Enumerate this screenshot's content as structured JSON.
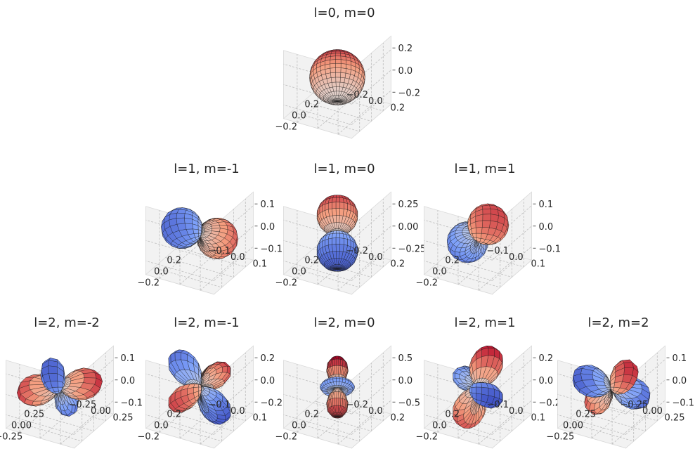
{
  "chart_data": [
    {
      "type": "surface3d",
      "title": "l=0, m=0",
      "l": 0,
      "m": 0,
      "x_ticks": [
        "−0.2",
        "0.0",
        "0.2"
      ],
      "y_ticks": [
        "0.2",
        "0.0",
        "−0.2"
      ],
      "z_ticks": [
        "0.2",
        "0.0",
        "−0.2"
      ]
    },
    {
      "type": "surface3d",
      "title": "l=1, m=-1",
      "l": 1,
      "m": -1,
      "x_ticks": [
        "−0.2",
        "0.0",
        "0.2"
      ],
      "y_ticks": [
        "0.1",
        "0.0",
        "−0.1"
      ],
      "z_ticks": [
        "0.1",
        "0.0",
        "−0.1"
      ]
    },
    {
      "type": "surface3d",
      "title": "l=1, m=0",
      "l": 1,
      "m": 0,
      "x_ticks": [
        "−0.2",
        "0.0",
        "0.2"
      ],
      "y_ticks": [
        "0.2",
        "0.0",
        "−0.2"
      ],
      "z_ticks": [
        "0.25",
        "0.00",
        "−0.25"
      ]
    },
    {
      "type": "surface3d",
      "title": "l=1, m=1",
      "l": 1,
      "m": 1,
      "x_ticks": [
        "−0.2",
        "0.0",
        "0.2"
      ],
      "y_ticks": [
        "0.1",
        "0.0",
        "−0.1"
      ],
      "z_ticks": [
        "0.1",
        "0.0",
        "−0.1"
      ]
    },
    {
      "type": "surface3d",
      "title": "l=2, m=-2",
      "l": 2,
      "m": -2,
      "x_ticks": [
        "−0.25",
        "0.00",
        "0.25"
      ],
      "y_ticks": [
        "0.25",
        "0.00",
        "−0.25"
      ],
      "z_ticks": [
        "0.1",
        "0.0",
        "−0.1"
      ]
    },
    {
      "type": "surface3d",
      "title": "l=2, m=-1",
      "l": 2,
      "m": -1,
      "x_ticks": [
        "−0.2",
        "0.0",
        "0.2"
      ],
      "y_ticks": [
        "0.1",
        "0.0",
        "−0.1"
      ],
      "z_ticks": [
        "0.2",
        "0.0",
        "−0.2"
      ]
    },
    {
      "type": "surface3d",
      "title": "l=2, m=0",
      "l": 2,
      "m": 0,
      "x_ticks": [
        "−0.2",
        "0.0",
        "0.2"
      ],
      "y_ticks": [
        "0.2",
        "0.0",
        "−0.2"
      ],
      "z_ticks": [
        "0.5",
        "0.0",
        "−0.5"
      ]
    },
    {
      "type": "surface3d",
      "title": "l=2, m=1",
      "l": 2,
      "m": 1,
      "x_ticks": [
        "−0.2",
        "0.0",
        "0.2"
      ],
      "y_ticks": [
        "0.1",
        "0.0",
        "−0.1"
      ],
      "z_ticks": [
        "0.2",
        "0.0",
        "−0.2"
      ]
    },
    {
      "type": "surface3d",
      "title": "l=2, m=2",
      "l": 2,
      "m": 2,
      "x_ticks": [
        "−0.25",
        "0.00",
        "0.25"
      ],
      "y_ticks": [
        "0.25",
        "0.00",
        "−0.25"
      ],
      "z_ticks": [
        "0.1",
        "0.0",
        "−0.1"
      ]
    }
  ],
  "colormap": {
    "low": "#3b4cc0",
    "mid": "#dddddd",
    "high": "#b40426"
  }
}
